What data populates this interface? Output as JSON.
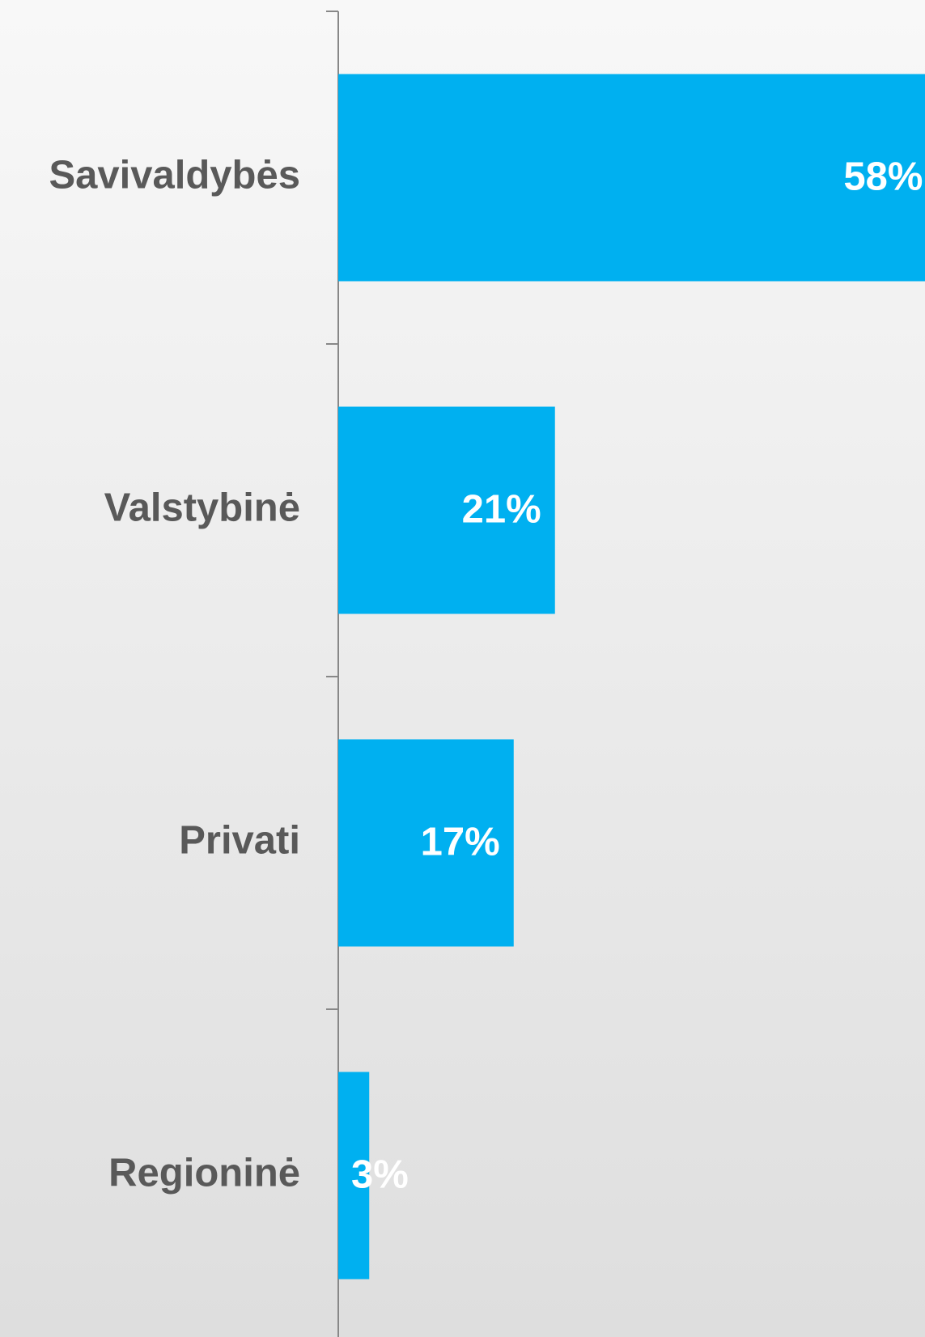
{
  "chart_data": {
    "type": "bar",
    "orientation": "horizontal",
    "categories": [
      "Savivaldybės",
      "Valstybinė",
      "Privati",
      "Regioninė"
    ],
    "values": [
      58,
      21,
      17,
      3
    ],
    "value_labels": [
      "58%",
      "21%",
      "17%",
      "3%"
    ],
    "color": "#00b0f0"
  }
}
